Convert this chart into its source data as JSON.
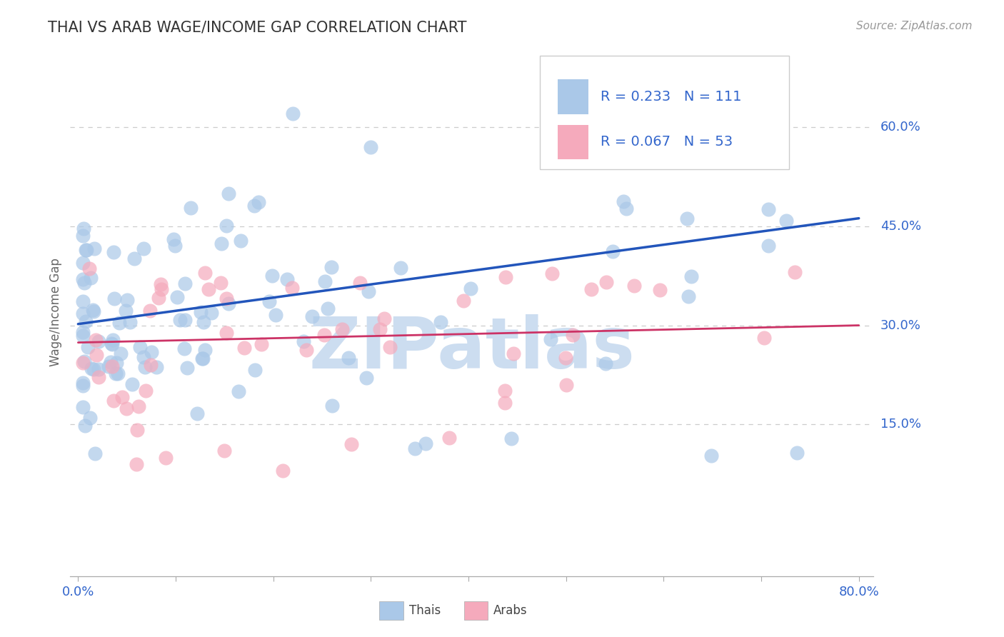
{
  "title": "THAI VS ARAB WAGE/INCOME GAP CORRELATION CHART",
  "source": "Source: ZipAtlas.com",
  "ylabel": "Wage/Income Gap",
  "xlim_min": -0.008,
  "xlim_max": 0.815,
  "ylim_min": -0.08,
  "ylim_max": 0.72,
  "ytick_positions": [
    0.15,
    0.3,
    0.45,
    0.6
  ],
  "ytick_labels": [
    "15.0%",
    "30.0%",
    "45.0%",
    "60.0%"
  ],
  "xtick_positions": [
    0.0,
    0.1,
    0.2,
    0.3,
    0.4,
    0.5,
    0.6,
    0.7,
    0.8
  ],
  "xticklabels": [
    "0.0%",
    "",
    "",
    "",
    "",
    "",
    "",
    "",
    "80.0%"
  ],
  "grid_color": "#cccccc",
  "bg_color": "#ffffff",
  "thai_scatter_color": "#aac8e8",
  "arab_scatter_color": "#f5aabc",
  "thai_line_color": "#2255bb",
  "arab_line_color": "#cc3366",
  "thai_line_start_y": 0.302,
  "thai_line_end_y": 0.462,
  "arab_line_start_y": 0.274,
  "arab_line_end_y": 0.3,
  "legend_R_thai": "0.233",
  "legend_N_thai": "111",
  "legend_R_arab": "0.067",
  "legend_N_arab": "53",
  "legend_label_thai": "Thais",
  "legend_label_arab": "Arabs",
  "watermark": "ZIPatlas",
  "watermark_color": "#ccddf0",
  "title_color": "#333333",
  "axis_tick_color": "#3366cc",
  "ylabel_color": "#666666",
  "source_color": "#999999",
  "n_thai": 111,
  "n_arab": 53,
  "title_fontsize": 15,
  "tick_fontsize": 13,
  "ylabel_fontsize": 12,
  "legend_fontsize": 14,
  "source_fontsize": 11
}
